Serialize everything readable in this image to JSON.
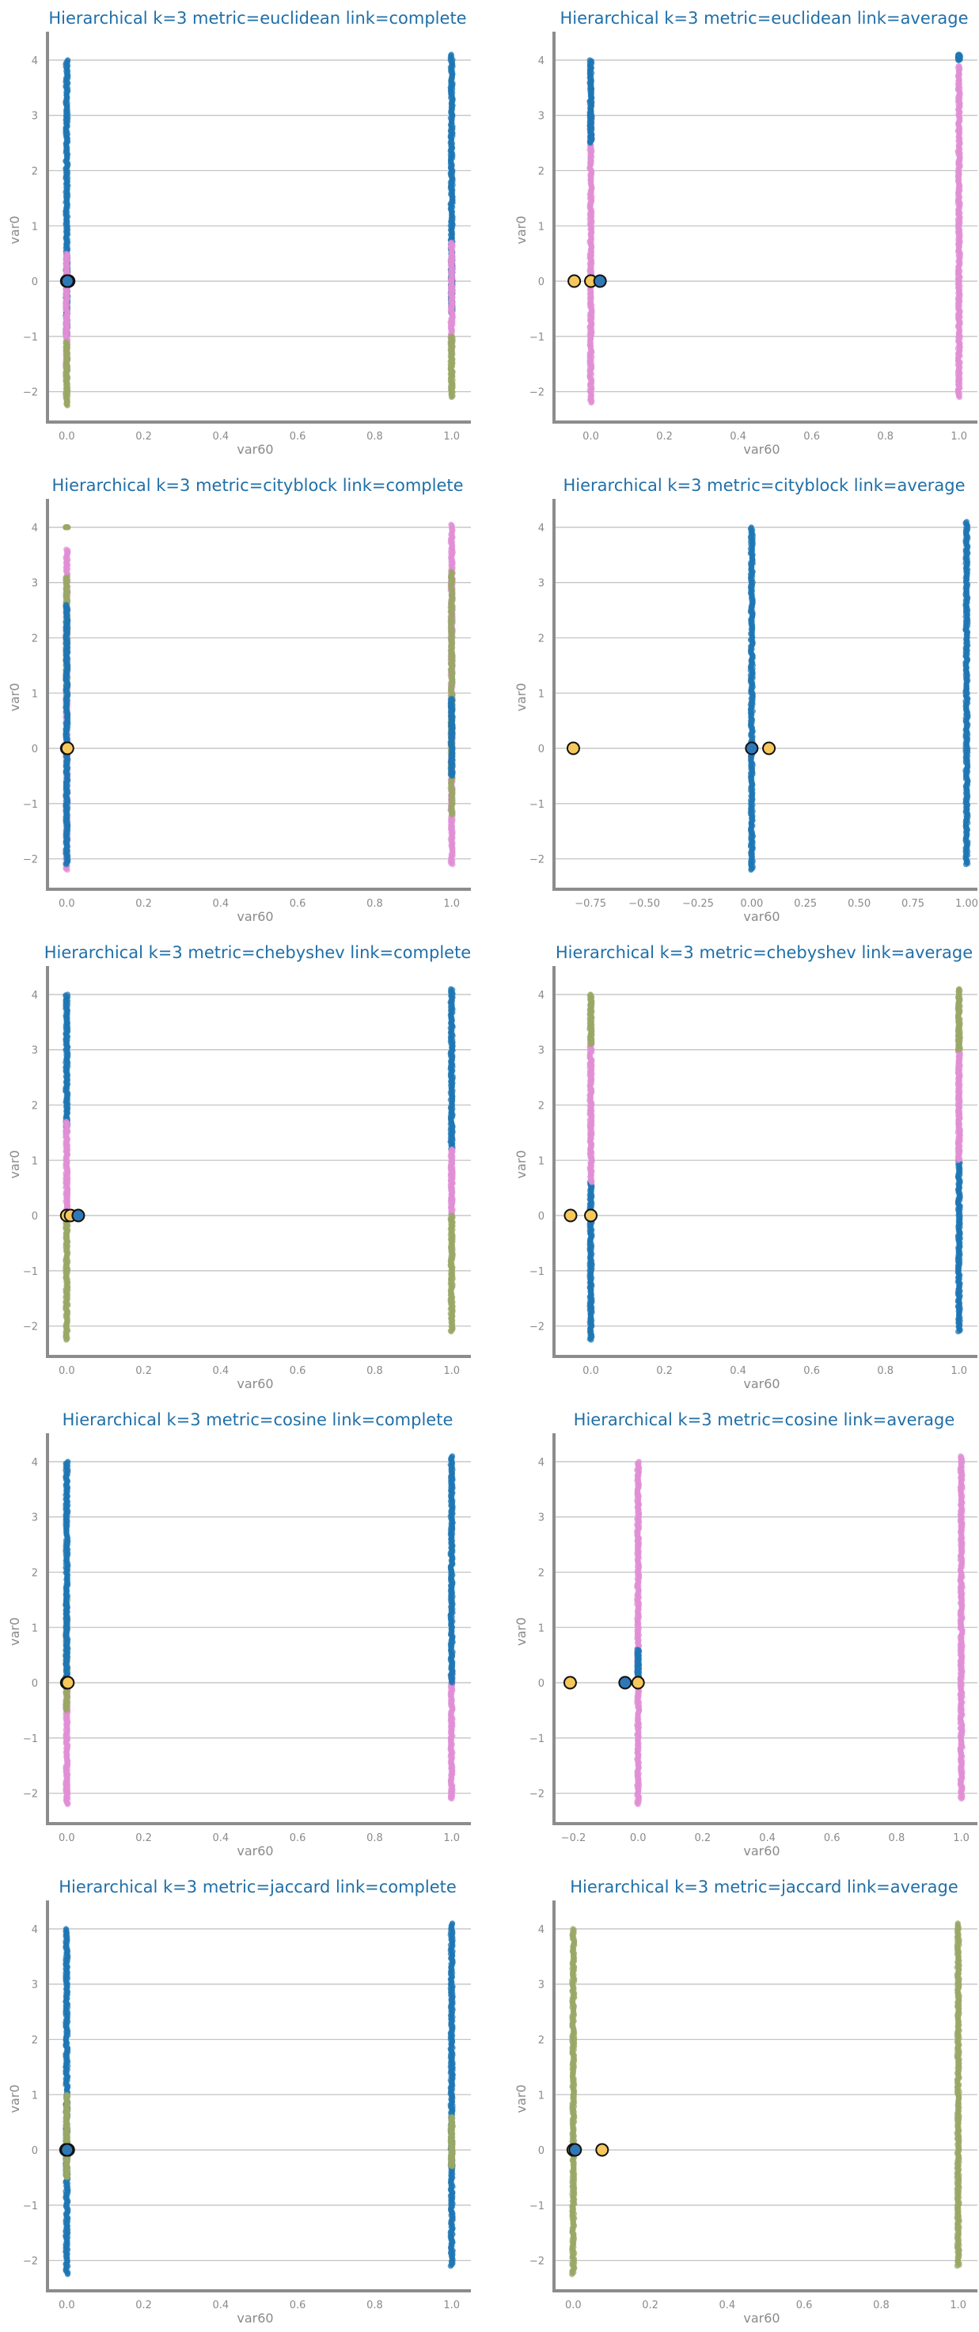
{
  "colors": {
    "blue": "#1f77b4",
    "pink": "#e08fd6",
    "olive": "#9aa867",
    "centroid_yellow": "#f6c75a",
    "centroid_blue": "#2f78b8",
    "title": "#1f6fa8",
    "grid": "#c4c4c4",
    "spine": "#8c8c8c"
  },
  "chart_data": [
    {
      "type": "scatter",
      "title": "Hierarchical k=3 metric=euclidean link=complete",
      "xlabel": "var60",
      "ylabel": "var0",
      "xlim": [
        -0.05,
        1.05
      ],
      "ylim": [
        -2.55,
        4.4
      ],
      "xticks": [
        0,
        0.2,
        0.4,
        0.6,
        0.8,
        1.0
      ],
      "xtick_labels": [
        "0.0",
        "0.2",
        "0.4",
        "0.6",
        "0.8",
        "1.0"
      ],
      "yticks": [
        -2,
        -1,
        0,
        1,
        2,
        3,
        4
      ],
      "ytick_labels": [
        "−2",
        "−1",
        "0",
        "1",
        "2",
        "3",
        "4"
      ],
      "grid": "horizontal",
      "x_values": [
        0,
        1
      ],
      "y_range": [
        -2.2,
        4.05
      ],
      "series": [
        {
          "color": "blue",
          "segments": [
            [
              0,
              0.3,
              4.0
            ],
            [
              1,
              0.3,
              4.1
            ],
            [
              0,
              -1.0,
              0.3
            ],
            [
              1,
              -0.6,
              0.3
            ]
          ]
        },
        {
          "color": "pink",
          "segments": [
            [
              0,
              -1.6,
              0.5
            ],
            [
              1,
              -1.3,
              0.7
            ]
          ]
        },
        {
          "color": "olive",
          "segments": [
            [
              0,
              -2.25,
              -1.1
            ],
            [
              1,
              -2.1,
              -1.0
            ]
          ]
        }
      ],
      "centroids": [
        {
          "x": 0.0,
          "y": 0.0,
          "color": "centroid_yellow"
        },
        {
          "x": 0.005,
          "y": 0.0,
          "color": "centroid_yellow"
        },
        {
          "x": 0.002,
          "y": 0.0,
          "color": "centroid_blue"
        }
      ]
    },
    {
      "type": "scatter",
      "title": "Hierarchical k=3 metric=euclidean link=average",
      "xlabel": "var60",
      "ylabel": "var0",
      "xlim": [
        -0.1,
        1.05
      ],
      "ylim": [
        -2.55,
        4.4
      ],
      "xticks": [
        0,
        0.2,
        0.4,
        0.6,
        0.8,
        1.0
      ],
      "xtick_labels": [
        "0.0",
        "0.2",
        "0.4",
        "0.6",
        "0.8",
        "1.0"
      ],
      "yticks": [
        -2,
        -1,
        0,
        1,
        2,
        3,
        4
      ],
      "ytick_labels": [
        "−2",
        "−1",
        "0",
        "1",
        "2",
        "3",
        "4"
      ],
      "grid": "horizontal",
      "x_values": [
        0,
        1
      ],
      "y_range": [
        -2.2,
        4.05
      ],
      "series": [
        {
          "color": "pink",
          "segments": [
            [
              0,
              -2.2,
              3.0
            ],
            [
              1,
              -2.1,
              3.9
            ]
          ]
        },
        {
          "color": "blue",
          "segments": [
            [
              0,
              2.5,
              4.0
            ],
            [
              1,
              4.0,
              4.1
            ]
          ]
        }
      ],
      "centroids": [
        {
          "x": -0.045,
          "y": 0.0,
          "color": "centroid_yellow"
        },
        {
          "x": 0.0,
          "y": 0.0,
          "color": "centroid_yellow"
        },
        {
          "x": 0.025,
          "y": 0.0,
          "color": "centroid_blue"
        }
      ]
    },
    {
      "type": "scatter",
      "title": "Hierarchical k=3 metric=cityblock link=complete",
      "xlabel": "var60",
      "ylabel": "var0",
      "xlim": [
        -0.05,
        1.05
      ],
      "ylim": [
        -2.55,
        4.4
      ],
      "xticks": [
        0,
        0.2,
        0.4,
        0.6,
        0.8,
        1.0
      ],
      "xtick_labels": [
        "0.0",
        "0.2",
        "0.4",
        "0.6",
        "0.8",
        "1.0"
      ],
      "yticks": [
        -2,
        -1,
        0,
        1,
        2,
        3,
        4
      ],
      "ytick_labels": [
        "−2",
        "−1",
        "0",
        "1",
        "2",
        "3",
        "4"
      ],
      "grid": "horizontal",
      "x_values": [
        0,
        1
      ],
      "y_range": [
        -2.2,
        4.05
      ],
      "series": [
        {
          "color": "pink",
          "segments": [
            [
              0,
              -2.2,
              3.6
            ],
            [
              1,
              -2.1,
              4.05
            ]
          ]
        },
        {
          "color": "olive",
          "segments": [
            [
              0,
              1.0,
              3.1
            ],
            [
              1,
              -1.2,
              3.2
            ],
            [
              0,
              4.0,
              4.0
            ]
          ]
        },
        {
          "color": "blue",
          "segments": [
            [
              0,
              -2.1,
              2.6
            ],
            [
              1,
              -0.5,
              0.9
            ]
          ]
        }
      ],
      "centroids": [
        {
          "x": 0.0,
          "y": 0.0,
          "color": "centroid_yellow"
        },
        {
          "x": 0.002,
          "y": 0.0,
          "color": "centroid_yellow"
        }
      ]
    },
    {
      "type": "scatter",
      "title": "Hierarchical k=3 metric=cityblock link=average",
      "xlabel": "var60",
      "ylabel": "var0",
      "xlim": [
        -0.92,
        1.05
      ],
      "ylim": [
        -2.55,
        4.4
      ],
      "xticks": [
        -0.75,
        -0.5,
        -0.25,
        0,
        0.25,
        0.5,
        0.75,
        1.0
      ],
      "xtick_labels": [
        "−0.75",
        "−0.50",
        "−0.25",
        "0.00",
        "0.25",
        "0.50",
        "0.75",
        "1.00"
      ],
      "yticks": [
        -2,
        -1,
        0,
        1,
        2,
        3,
        4
      ],
      "ytick_labels": [
        "−2",
        "−1",
        "0",
        "1",
        "2",
        "3",
        "4"
      ],
      "grid": "horizontal",
      "x_values": [
        0,
        1
      ],
      "y_range": [
        -2.2,
        4.05
      ],
      "series": [
        {
          "color": "blue",
          "segments": [
            [
              0,
              -2.2,
              4.0
            ],
            [
              1,
              -2.1,
              4.1
            ]
          ]
        }
      ],
      "centroids": [
        {
          "x": -0.83,
          "y": 0.0,
          "color": "centroid_yellow"
        },
        {
          "x": 0.0,
          "y": 0.0,
          "color": "centroid_blue"
        },
        {
          "x": 0.08,
          "y": 0.0,
          "color": "centroid_yellow"
        }
      ]
    },
    {
      "type": "scatter",
      "title": "Hierarchical k=3 metric=chebyshev link=complete",
      "xlabel": "var60",
      "ylabel": "var0",
      "xlim": [
        -0.05,
        1.05
      ],
      "ylim": [
        -2.55,
        4.4
      ],
      "xticks": [
        0,
        0.2,
        0.4,
        0.6,
        0.8,
        1.0
      ],
      "xtick_labels": [
        "0.0",
        "0.2",
        "0.4",
        "0.6",
        "0.8",
        "1.0"
      ],
      "yticks": [
        -2,
        -1,
        0,
        1,
        2,
        3,
        4
      ],
      "ytick_labels": [
        "−2",
        "−1",
        "0",
        "1",
        "2",
        "3",
        "4"
      ],
      "grid": "horizontal",
      "x_values": [
        0,
        1
      ],
      "y_range": [
        -2.2,
        4.05
      ],
      "series": [
        {
          "color": "blue",
          "segments": [
            [
              0,
              1.5,
              4.0
            ],
            [
              1,
              1.2,
              4.1
            ]
          ]
        },
        {
          "color": "pink",
          "segments": [
            [
              0,
              0.0,
              1.7
            ],
            [
              1,
              0.0,
              1.2
            ]
          ]
        },
        {
          "color": "olive",
          "segments": [
            [
              0,
              -2.25,
              0.0
            ],
            [
              1,
              -2.1,
              0.0
            ]
          ]
        }
      ],
      "centroids": [
        {
          "x": 0.0,
          "y": 0.0,
          "color": "centroid_yellow"
        },
        {
          "x": 0.01,
          "y": 0.0,
          "color": "centroid_yellow"
        },
        {
          "x": 0.03,
          "y": 0.0,
          "color": "centroid_blue"
        }
      ]
    },
    {
      "type": "scatter",
      "title": "Hierarchical k=3 metric=chebyshev link=average",
      "xlabel": "var60",
      "ylabel": "var0",
      "xlim": [
        -0.1,
        1.05
      ],
      "ylim": [
        -2.55,
        4.4
      ],
      "xticks": [
        0,
        0.2,
        0.4,
        0.6,
        0.8,
        1.0
      ],
      "xtick_labels": [
        "0.0",
        "0.2",
        "0.4",
        "0.6",
        "0.8",
        "1.0"
      ],
      "yticks": [
        -2,
        -1,
        0,
        1,
        2,
        3,
        4
      ],
      "ytick_labels": [
        "−2",
        "−1",
        "0",
        "1",
        "2",
        "3",
        "4"
      ],
      "grid": "horizontal",
      "x_values": [
        0,
        1
      ],
      "y_range": [
        -2.2,
        4.05
      ],
      "series": [
        {
          "color": "blue",
          "segments": [
            [
              0,
              -2.25,
              0.6
            ],
            [
              1,
              -2.1,
              1.0
            ]
          ]
        },
        {
          "color": "pink",
          "segments": [
            [
              0,
              0.6,
              3.1
            ],
            [
              1,
              1.0,
              3.0
            ]
          ]
        },
        {
          "color": "olive",
          "segments": [
            [
              0,
              3.1,
              4.0
            ],
            [
              1,
              3.0,
              4.1
            ]
          ]
        }
      ],
      "centroids": [
        {
          "x": -0.055,
          "y": 0.0,
          "color": "centroid_yellow"
        },
        {
          "x": 0.0,
          "y": 0.0,
          "color": "centroid_yellow"
        }
      ]
    },
    {
      "type": "scatter",
      "title": "Hierarchical k=3 metric=cosine link=complete",
      "xlabel": "var60",
      "ylabel": "var0",
      "xlim": [
        -0.05,
        1.05
      ],
      "ylim": [
        -2.55,
        4.4
      ],
      "xticks": [
        0,
        0.2,
        0.4,
        0.6,
        0.8,
        1.0
      ],
      "xtick_labels": [
        "0.0",
        "0.2",
        "0.4",
        "0.6",
        "0.8",
        "1.0"
      ],
      "yticks": [
        -2,
        -1,
        0,
        1,
        2,
        3,
        4
      ],
      "ytick_labels": [
        "−2",
        "−1",
        "0",
        "1",
        "2",
        "3",
        "4"
      ],
      "grid": "horizontal",
      "x_values": [
        0,
        1
      ],
      "y_range": [
        -2.2,
        4.05
      ],
      "series": [
        {
          "color": "pink",
          "segments": [
            [
              0,
              -2.2,
              0.0
            ],
            [
              1,
              -2.1,
              0.2
            ]
          ]
        },
        {
          "color": "olive",
          "segments": [
            [
              0,
              -0.5,
              1.5
            ]
          ]
        },
        {
          "color": "blue",
          "segments": [
            [
              0,
              0.0,
              4.0
            ],
            [
              1,
              0.0,
              4.1
            ]
          ]
        }
      ],
      "centroids": [
        {
          "x": 0.0,
          "y": 0.0,
          "color": "centroid_yellow"
        },
        {
          "x": 0.003,
          "y": 0.0,
          "color": "centroid_yellow"
        }
      ]
    },
    {
      "type": "scatter",
      "title": "Hierarchical k=3 metric=cosine link=average",
      "xlabel": "var60",
      "ylabel": "var0",
      "xlim": [
        -0.26,
        1.05
      ],
      "ylim": [
        -2.55,
        4.4
      ],
      "xticks": [
        -0.2,
        0,
        0.2,
        0.4,
        0.6,
        0.8,
        1.0
      ],
      "xtick_labels": [
        "−0.2",
        "0.0",
        "0.2",
        "0.4",
        "0.6",
        "0.8",
        "1.0"
      ],
      "yticks": [
        -2,
        -1,
        0,
        1,
        2,
        3,
        4
      ],
      "ytick_labels": [
        "−2",
        "−1",
        "0",
        "1",
        "2",
        "3",
        "4"
      ],
      "grid": "horizontal",
      "x_values": [
        0,
        1
      ],
      "y_range": [
        -2.2,
        4.05
      ],
      "series": [
        {
          "color": "pink",
          "segments": [
            [
              0,
              -2.2,
              4.0
            ],
            [
              1,
              -2.1,
              4.1
            ]
          ]
        },
        {
          "color": "blue",
          "segments": [
            [
              0,
              0.0,
              0.6
            ]
          ]
        }
      ],
      "centroids": [
        {
          "x": -0.21,
          "y": 0.0,
          "color": "centroid_yellow"
        },
        {
          "x": -0.04,
          "y": 0.0,
          "color": "centroid_blue"
        },
        {
          "x": 0.0,
          "y": 0.0,
          "color": "centroid_yellow"
        }
      ]
    },
    {
      "type": "scatter",
      "title": "Hierarchical k=3 metric=jaccard link=complete",
      "xlabel": "var60",
      "ylabel": "var0",
      "xlim": [
        -0.05,
        1.05
      ],
      "ylim": [
        -2.55,
        4.4
      ],
      "xticks": [
        0,
        0.2,
        0.4,
        0.6,
        0.8,
        1.0
      ],
      "xtick_labels": [
        "0.0",
        "0.2",
        "0.4",
        "0.6",
        "0.8",
        "1.0"
      ],
      "yticks": [
        -2,
        -1,
        0,
        1,
        2,
        3,
        4
      ],
      "ytick_labels": [
        "−2",
        "−1",
        "0",
        "1",
        "2",
        "3",
        "4"
      ],
      "grid": "horizontal",
      "x_values": [
        0,
        1
      ],
      "y_range": [
        -2.2,
        4.05
      ],
      "series": [
        {
          "color": "blue",
          "segments": [
            [
              0,
              -2.25,
              4.0
            ],
            [
              1,
              -2.1,
              4.1
            ]
          ]
        },
        {
          "color": "olive",
          "segments": [
            [
              0,
              -0.5,
              1.0
            ],
            [
              1,
              -0.3,
              0.6
            ]
          ]
        }
      ],
      "centroids": [
        {
          "x": -0.002,
          "y": 0.0,
          "color": "centroid_yellow"
        },
        {
          "x": 0.004,
          "y": 0.0,
          "color": "centroid_yellow"
        },
        {
          "x": 0.001,
          "y": 0.0,
          "color": "centroid_blue"
        }
      ]
    },
    {
      "type": "scatter",
      "title": "Hierarchical k=3 metric=jaccard link=average",
      "xlabel": "var60",
      "ylabel": "var0",
      "xlim": [
        -0.05,
        1.05
      ],
      "ylim": [
        -2.55,
        4.4
      ],
      "xticks": [
        0,
        0.2,
        0.4,
        0.6,
        0.8,
        1.0
      ],
      "xtick_labels": [
        "0.0",
        "0.2",
        "0.4",
        "0.6",
        "0.8",
        "1.0"
      ],
      "yticks": [
        -2,
        -1,
        0,
        1,
        2,
        3,
        4
      ],
      "ytick_labels": [
        "−2",
        "−1",
        "0",
        "1",
        "2",
        "3",
        "4"
      ],
      "grid": "horizontal",
      "x_values": [
        0,
        1
      ],
      "y_range": [
        -2.2,
        4.05
      ],
      "series": [
        {
          "color": "olive",
          "segments": [
            [
              0,
              -2.25,
              4.0
            ],
            [
              1,
              -2.1,
              4.1
            ]
          ]
        }
      ],
      "centroids": [
        {
          "x": 0.0,
          "y": 0.0,
          "color": "centroid_yellow"
        },
        {
          "x": 0.005,
          "y": 0.0,
          "color": "centroid_blue"
        },
        {
          "x": 0.075,
          "y": 0.0,
          "color": "centroid_yellow"
        }
      ]
    }
  ]
}
